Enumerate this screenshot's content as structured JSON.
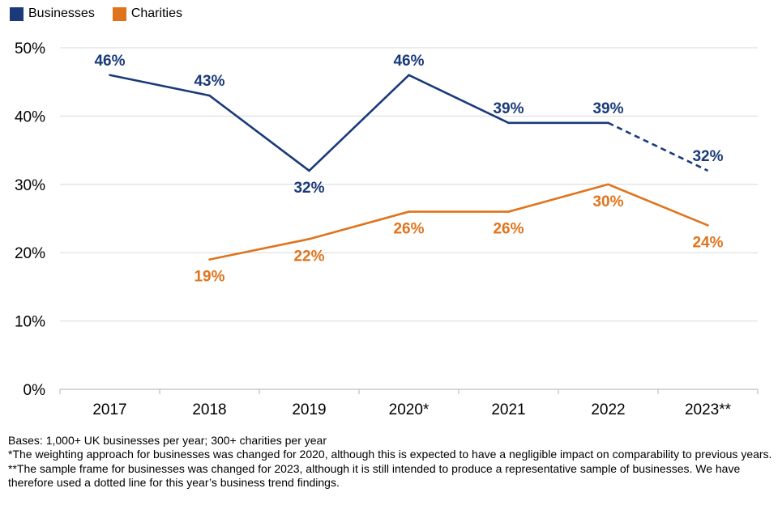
{
  "colors": {
    "businesses": "#1a3a7a",
    "charities": "#e0741d",
    "grid": "#d9d9d9",
    "axis": "#bfbfbf"
  },
  "legend": [
    {
      "label": "Businesses",
      "color": "#1a3a7a"
    },
    {
      "label": "Charities",
      "color": "#e0741d"
    }
  ],
  "chart_data": {
    "type": "line",
    "title": "",
    "xlabel": "",
    "ylabel": "",
    "categories": [
      "2017",
      "2018",
      "2019",
      "2020*",
      "2021",
      "2022",
      "2023**"
    ],
    "ylim": [
      0,
      50
    ],
    "yticks": [
      0,
      10,
      20,
      30,
      40,
      50
    ],
    "ytick_labels": [
      "0%",
      "10%",
      "20%",
      "30%",
      "40%",
      "50%"
    ],
    "grid": true,
    "legend_position": "top-left",
    "series": [
      {
        "name": "Businesses",
        "values": [
          46,
          43,
          32,
          46,
          39,
          39,
          32
        ],
        "labels": [
          "46%",
          "43%",
          "32%",
          "46%",
          "39%",
          "39%",
          "32%"
        ],
        "label_pos": [
          "above",
          "above",
          "below",
          "above",
          "above",
          "above",
          "above"
        ],
        "dashed_last_segment": true
      },
      {
        "name": "Charities",
        "values": [
          null,
          19,
          22,
          26,
          26,
          30,
          24
        ],
        "labels": [
          null,
          "19%",
          "22%",
          "26%",
          "26%",
          "30%",
          "24%"
        ],
        "label_pos": [
          null,
          "below",
          "below",
          "below",
          "below",
          "below",
          "below"
        ],
        "dashed_last_segment": false
      }
    ]
  },
  "notes": [
    "Bases: 1,000+ UK businesses per year; 300+ charities per year",
    "*The weighting approach for businesses was changed for 2020, although this is expected to have a negligible impact on comparability to previous years.",
    "**The sample frame for businesses was changed for 2023, although it is still intended to produce a representative sample of businesses. We have therefore used a dotted line for this year’s business trend findings."
  ]
}
